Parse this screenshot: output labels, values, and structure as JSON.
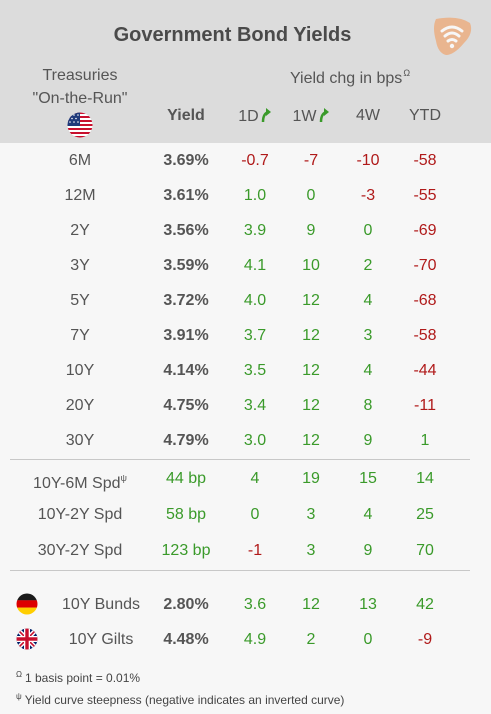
{
  "title": "Government Bond Yields",
  "header": {
    "treasuries_line1": "Treasuries",
    "treasuries_line2": "\"On-the-Run\"",
    "yield": "Yield",
    "chg": "Yield chg in bps",
    "chg_mark": "Ω",
    "cols": [
      "1D",
      "1W",
      "4W",
      "YTD"
    ]
  },
  "colors": {
    "positive": "#3a9a2a",
    "negative": "#b01a1a",
    "header_bg": "#dcdcdc"
  },
  "treasuries": [
    {
      "label": "6M",
      "yield": "3.69%",
      "d1": "-0.7",
      "w1": "-7",
      "w4": "-10",
      "ytd": "-58"
    },
    {
      "label": "12M",
      "yield": "3.61%",
      "d1": "1.0",
      "w1": "0",
      "w4": "-3",
      "ytd": "-55"
    },
    {
      "label": "2Y",
      "yield": "3.56%",
      "d1": "3.9",
      "w1": "9",
      "w4": "0",
      "ytd": "-69"
    },
    {
      "label": "3Y",
      "yield": "3.59%",
      "d1": "4.1",
      "w1": "10",
      "w4": "2",
      "ytd": "-70"
    },
    {
      "label": "5Y",
      "yield": "3.72%",
      "d1": "4.0",
      "w1": "12",
      "w4": "4",
      "ytd": "-68"
    },
    {
      "label": "7Y",
      "yield": "3.91%",
      "d1": "3.7",
      "w1": "12",
      "w4": "3",
      "ytd": "-58"
    },
    {
      "label": "10Y",
      "yield": "4.14%",
      "d1": "3.5",
      "w1": "12",
      "w4": "4",
      "ytd": "-44"
    },
    {
      "label": "20Y",
      "yield": "4.75%",
      "d1": "3.4",
      "w1": "12",
      "w4": "8",
      "ytd": "-11"
    },
    {
      "label": "30Y",
      "yield": "4.79%",
      "d1": "3.0",
      "w1": "12",
      "w4": "9",
      "ytd": "1"
    }
  ],
  "spreads": [
    {
      "label": "10Y-6M Spd",
      "mark": "ψ",
      "yield": "44 bp",
      "d1": "4",
      "w1": "19",
      "w4": "15",
      "ytd": "14"
    },
    {
      "label": "10Y-2Y Spd",
      "mark": "",
      "yield": "58 bp",
      "d1": "0",
      "w1": "3",
      "w4": "4",
      "ytd": "25"
    },
    {
      "label": "30Y-2Y Spd",
      "mark": "",
      "yield": "123 bp",
      "d1": "-1",
      "w1": "3",
      "w4": "9",
      "ytd": "70"
    }
  ],
  "foreign": [
    {
      "label": "10Y Bunds",
      "flag": "germany-flag",
      "yield": "2.80%",
      "d1": "3.6",
      "w1": "12",
      "w4": "13",
      "ytd": "42"
    },
    {
      "label": "10Y Gilts",
      "flag": "uk-flag",
      "yield": "4.48%",
      "d1": "4.9",
      "w1": "2",
      "w4": "0",
      "ytd": "-9"
    }
  ],
  "footnotes": [
    {
      "mark": "Ω",
      "text": "1 basis point = 0.01%"
    },
    {
      "mark": "ψ",
      "text": "Yield curve steepness (negative indicates an inverted curve)"
    }
  ]
}
